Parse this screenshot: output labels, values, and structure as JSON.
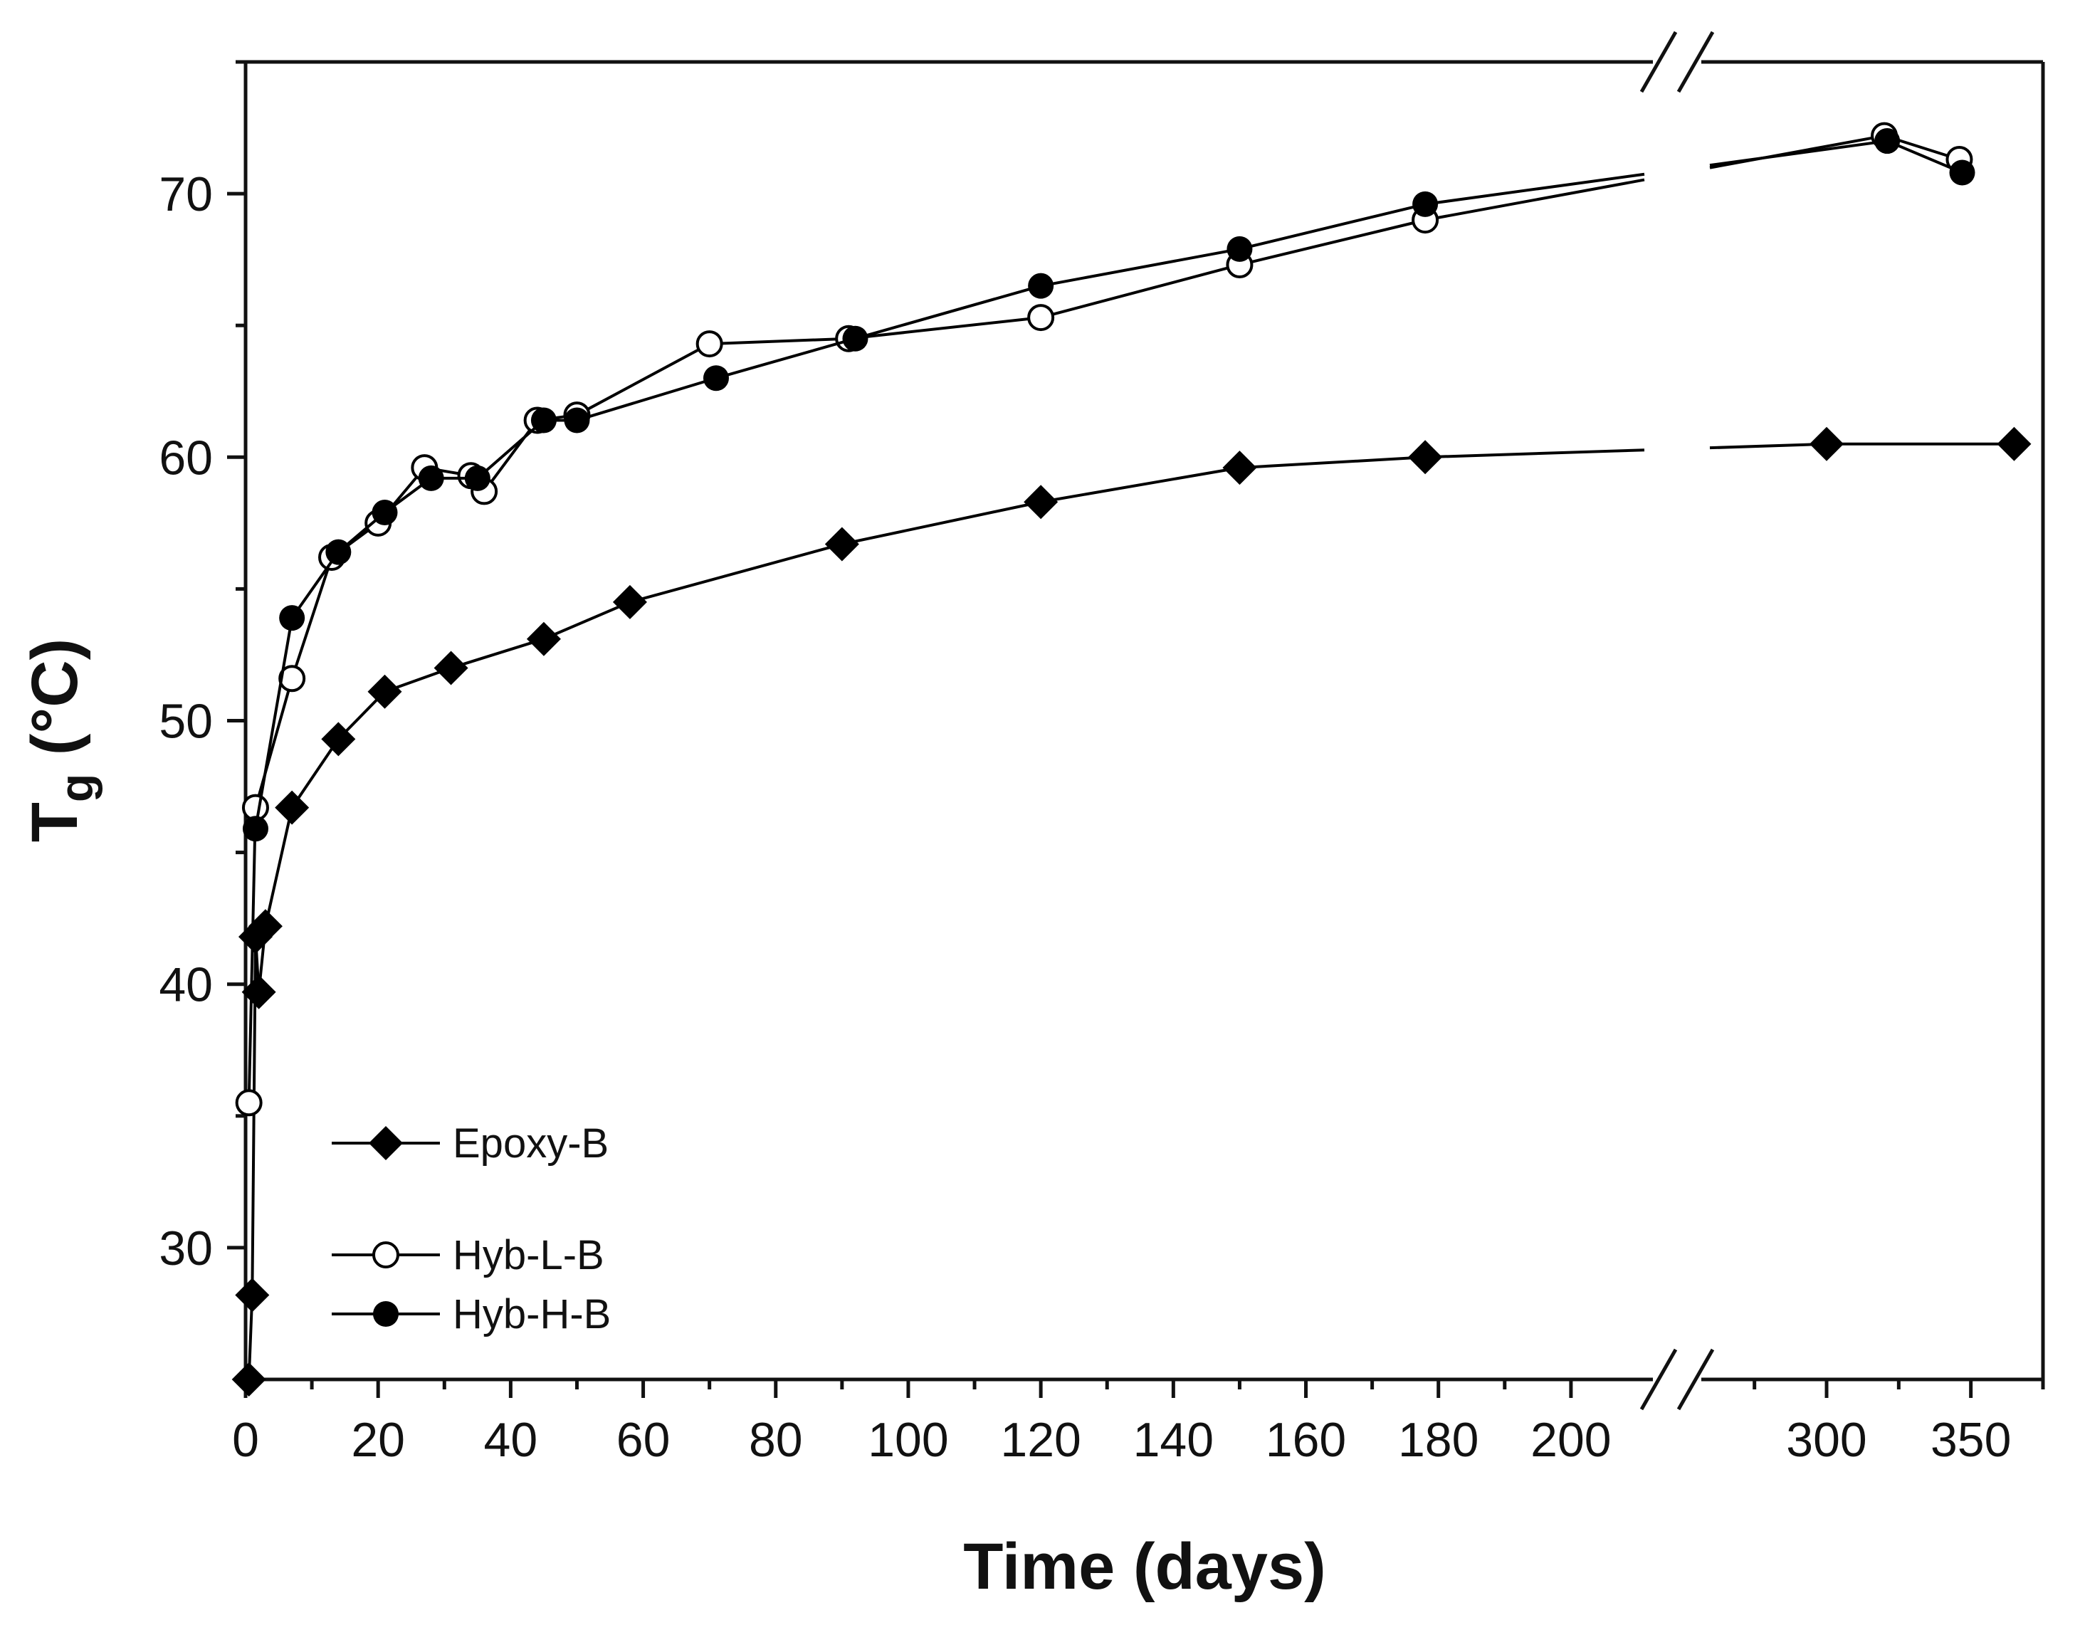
{
  "chart_data": {
    "type": "line",
    "title": "",
    "xlabel": "Time (days)",
    "ylabel": "T",
    "ylabel_subscript": "g",
    "ylabel_unit": " (°C)",
    "ylim": [
      25,
      75
    ],
    "xlim_segment1": [
      0,
      210
    ],
    "xlim_segment2": [
      262,
      375
    ],
    "x_break_between": [
      210,
      262
    ],
    "x_ticks": [
      0,
      20,
      40,
      60,
      80,
      100,
      120,
      140,
      160,
      180,
      200,
      300,
      350
    ],
    "x_tick_labels": [
      "0",
      "20",
      "40",
      "60",
      "80",
      "100",
      "120",
      "140",
      "160",
      "180",
      "200",
      "300",
      "350"
    ],
    "y_ticks": [
      30,
      40,
      50,
      60,
      70
    ],
    "y_tick_labels": [
      "30",
      "40",
      "50",
      "60",
      "70"
    ],
    "grid": false,
    "legend_position": "bottom-left",
    "series": [
      {
        "name": "Epoxy-B",
        "marker": "diamond",
        "points": [
          {
            "x": 0.5,
            "y": 25
          },
          {
            "x": 1,
            "y": 28.2
          },
          {
            "x": 1.5,
            "y": 41.8
          },
          {
            "x": 2,
            "y": 39.7
          },
          {
            "x": 3,
            "y": 42.2
          },
          {
            "x": 7,
            "y": 46.7
          },
          {
            "x": 14,
            "y": 49.3
          },
          {
            "x": 21,
            "y": 51.1
          },
          {
            "x": 31,
            "y": 52
          },
          {
            "x": 45,
            "y": 53.1
          },
          {
            "x": 58,
            "y": 54.5
          },
          {
            "x": 90,
            "y": 56.7
          },
          {
            "x": 120,
            "y": 58.3
          },
          {
            "x": 150,
            "y": 59.6
          },
          {
            "x": 178,
            "y": 60
          },
          {
            "x": 300,
            "y": 60.5
          },
          {
            "x": 365,
            "y": 60.5
          }
        ]
      },
      {
        "name": "Hyb-L-B",
        "marker": "open-circle",
        "points": [
          {
            "x": 0.5,
            "y": 35.5
          },
          {
            "x": 1.5,
            "y": 46.7
          },
          {
            "x": 7,
            "y": 51.6
          },
          {
            "x": 13,
            "y": 56.2
          },
          {
            "x": 20,
            "y": 57.5
          },
          {
            "x": 27,
            "y": 59.6
          },
          {
            "x": 34,
            "y": 59.3
          },
          {
            "x": 36,
            "y": 58.7
          },
          {
            "x": 44,
            "y": 61.4
          },
          {
            "x": 50,
            "y": 61.6
          },
          {
            "x": 70,
            "y": 64.3
          },
          {
            "x": 91,
            "y": 64.5
          },
          {
            "x": 120,
            "y": 65.3
          },
          {
            "x": 150,
            "y": 67.3
          },
          {
            "x": 178,
            "y": 69
          },
          {
            "x": 320,
            "y": 72.2
          },
          {
            "x": 346,
            "y": 71.3
          }
        ]
      },
      {
        "name": "Hyb-H-B",
        "marker": "filled-circle",
        "points": [
          {
            "x": 1.5,
            "y": 45.9
          },
          {
            "x": 7,
            "y": 53.9
          },
          {
            "x": 14,
            "y": 56.4
          },
          {
            "x": 21,
            "y": 57.9
          },
          {
            "x": 28,
            "y": 59.2
          },
          {
            "x": 35,
            "y": 59.2
          },
          {
            "x": 45,
            "y": 61.4
          },
          {
            "x": 50,
            "y": 61.4
          },
          {
            "x": 71,
            "y": 63
          },
          {
            "x": 92,
            "y": 64.5
          },
          {
            "x": 120,
            "y": 66.5
          },
          {
            "x": 150,
            "y": 67.9
          },
          {
            "x": 178,
            "y": 69.6
          },
          {
            "x": 321,
            "y": 72
          },
          {
            "x": 347,
            "y": 70.8
          }
        ]
      }
    ]
  }
}
